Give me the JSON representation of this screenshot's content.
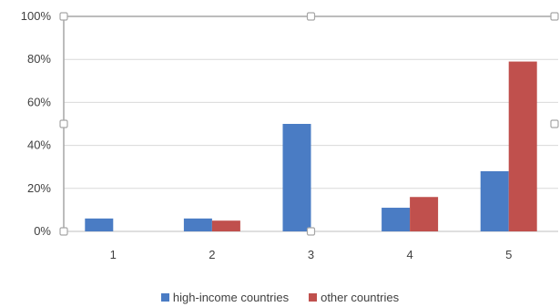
{
  "colors": {
    "high_income": "#4a7cc4",
    "other": "#c0504d",
    "gridline": "#d9d9d9",
    "axis": "#bfbfbf",
    "selection_border": "#a6a6a6"
  },
  "chart_data": {
    "type": "bar",
    "categories": [
      "1",
      "2",
      "3",
      "4",
      "5"
    ],
    "series": [
      {
        "name": "high-income countries",
        "values": [
          6,
          6,
          50,
          11,
          28
        ]
      },
      {
        "name": "other countries",
        "values": [
          0,
          5,
          0,
          16,
          79
        ]
      }
    ],
    "y_ticks": [
      "0%",
      "20%",
      "40%",
      "60%",
      "80%",
      "100%"
    ],
    "ylim": [
      0,
      100
    ],
    "y_unit": "%",
    "grid": true,
    "legend_position": "bottom",
    "selected_state": true
  },
  "legend": {
    "items": [
      "high-income countries",
      "other countries"
    ]
  }
}
